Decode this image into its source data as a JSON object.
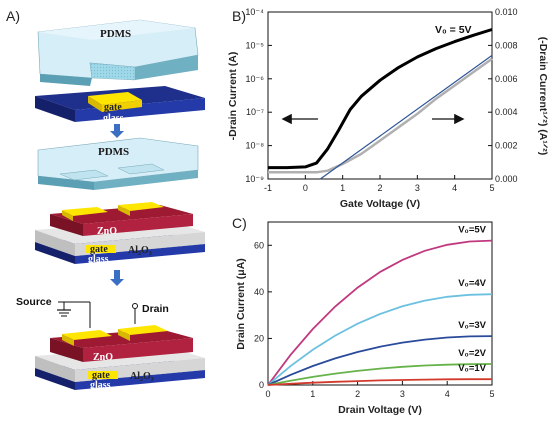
{
  "panels": {
    "a": "A)",
    "b": "B)",
    "c": "C)"
  },
  "schematic": {
    "pdms": "PDMS",
    "gate": "gate",
    "glass": "glass",
    "zno": "ZnO",
    "al2o3": "Al₂O₃",
    "source": "Source",
    "drain": "Drain"
  },
  "chart_data": [
    {
      "panel": "B",
      "type": "line",
      "annotation": "V₀ = 5V",
      "xlabel": "Gate Voltage (V)",
      "ylabel_left": "-Drain Current (A)",
      "ylabel_right": "(-Drain Current¹ᐟ²) (A¹ᐟ²)",
      "xlim": [
        -1,
        5
      ],
      "ylim_left_log": [
        1e-09,
        0.0001
      ],
      "ylim_right": [
        0,
        0.01
      ],
      "x_ticks": [
        "-1",
        "0",
        "1",
        "2",
        "3",
        "4",
        "5"
      ],
      "y_ticks_left": [
        "10⁻⁹",
        "10⁻⁸",
        "10⁻⁷",
        "10⁻⁶",
        "10⁻⁵",
        "10⁻⁴"
      ],
      "y_ticks_right": [
        "0.000",
        "0.002",
        "0.004",
        "0.006",
        "0.008",
        "0.010"
      ],
      "series": [
        {
          "axis": "left-log",
          "color": "#000000",
          "x": [
            -1,
            -0.5,
            0,
            0.3,
            0.6,
            0.9,
            1.2,
            1.5,
            2,
            2.5,
            3,
            3.5,
            4,
            4.5,
            5
          ],
          "values": [
            2.2e-09,
            2.2e-09,
            2.3e-09,
            3e-09,
            8e-09,
            3e-08,
            1.2e-07,
            3e-07,
            9e-07,
            2.2e-06,
            4.5e-06,
            8e-06,
            1.3e-05,
            2e-05,
            3e-05
          ]
        },
        {
          "axis": "right",
          "color": "#b0b0b0",
          "x": [
            -1,
            -0.5,
            0,
            0.3,
            0.6,
            1,
            1.5,
            2,
            2.5,
            3,
            3.5,
            4,
            4.5,
            5
          ],
          "values": [
            0.0004,
            0.0004,
            0.0004,
            0.0004,
            0.0005,
            0.0009,
            0.0015,
            0.0023,
            0.0031,
            0.0039,
            0.0048,
            0.0056,
            0.0064,
            0.0072
          ]
        },
        {
          "axis": "right",
          "color": "#2f5597",
          "x": [
            0.4,
            5
          ],
          "values": [
            0.0,
            0.0074
          ]
        }
      ],
      "arrows": [
        "left",
        "right"
      ]
    },
    {
      "panel": "C",
      "type": "line",
      "xlabel": "Drain Voltage (V)",
      "ylabel": "Drain Current (μA)",
      "xlim": [
        0,
        5
      ],
      "ylim": [
        0,
        70
      ],
      "x_ticks": [
        "0",
        "1",
        "2",
        "3",
        "4",
        "5"
      ],
      "y_ticks": [
        "0",
        "20",
        "40",
        "60"
      ],
      "series": [
        {
          "name": "V₀=5V",
          "sat": 62,
          "color": "#c0397f"
        },
        {
          "name": "V₀=4V",
          "sat": 39,
          "color": "#6bc1df"
        },
        {
          "name": "V₀=3V",
          "sat": 21,
          "color": "#2a4a9a"
        },
        {
          "name": "V₀=2V",
          "sat": 9,
          "color": "#66b34a"
        },
        {
          "name": "V₀=1V",
          "sat": 2.5,
          "color": "#d23b2c"
        }
      ],
      "curve_x": [
        0,
        0.5,
        1,
        1.5,
        2,
        2.5,
        3,
        3.5,
        4,
        4.5,
        5
      ]
    }
  ]
}
